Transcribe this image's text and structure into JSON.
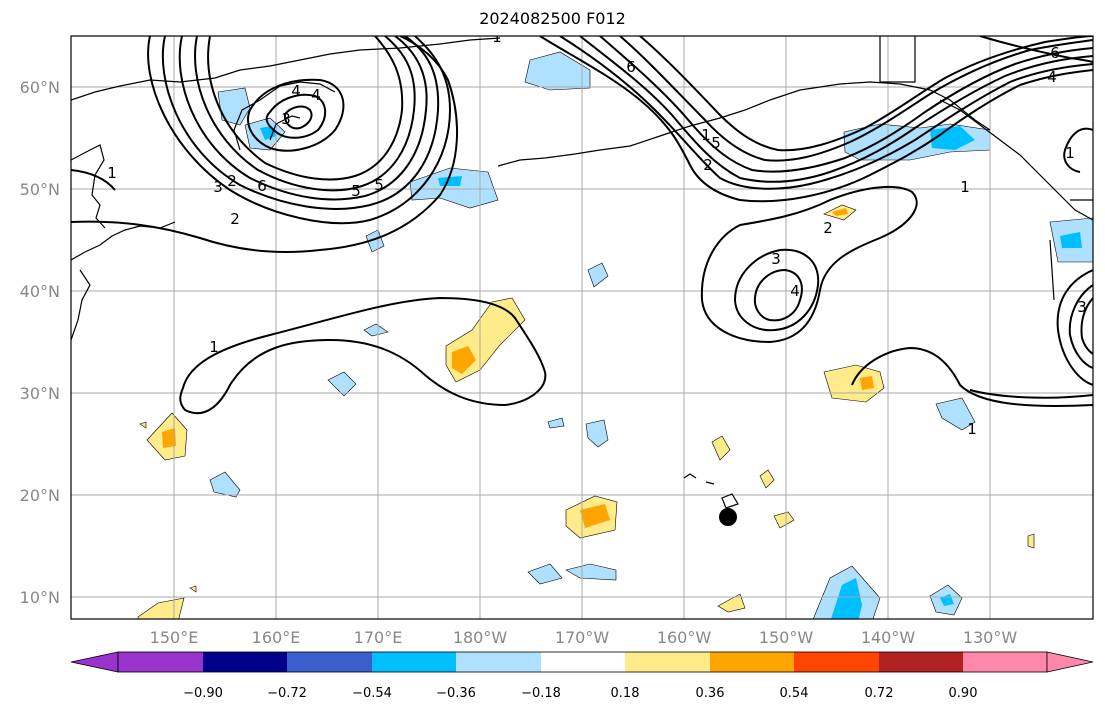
{
  "title": "2024082500 F012",
  "lat_labels": [
    "60°N",
    "50°N",
    "40°N",
    "30°N",
    "20°N",
    "10°N"
  ],
  "lon_labels": [
    "150°E",
    "160°E",
    "170°E",
    "180°W",
    "170°W",
    "160°W",
    "150°W",
    "140°W",
    "130°W"
  ],
  "colorbar": {
    "ticks": [
      "−0.90",
      "−0.72",
      "−0.54",
      "−0.36",
      "−0.18",
      "0.18",
      "0.36",
      "0.54",
      "0.72",
      "0.90"
    ],
    "colors": [
      "#9933cc",
      "#00008b",
      "#3a5fcd",
      "#00bfff",
      "#b0e0ff",
      "#ffffff",
      "#ffeb8a",
      "#ffa500",
      "#ff4500",
      "#b22222",
      "#ff88aa"
    ]
  },
  "contour_labels": [
    "1",
    "1",
    "1",
    "1",
    "1",
    "1",
    "1",
    "2",
    "2",
    "2",
    "2",
    "3",
    "3",
    "3",
    "3",
    "4",
    "4",
    "4",
    "4",
    "5",
    "5",
    "5",
    "6",
    "6",
    "6"
  ],
  "marker": "typhoon-center-marker"
}
